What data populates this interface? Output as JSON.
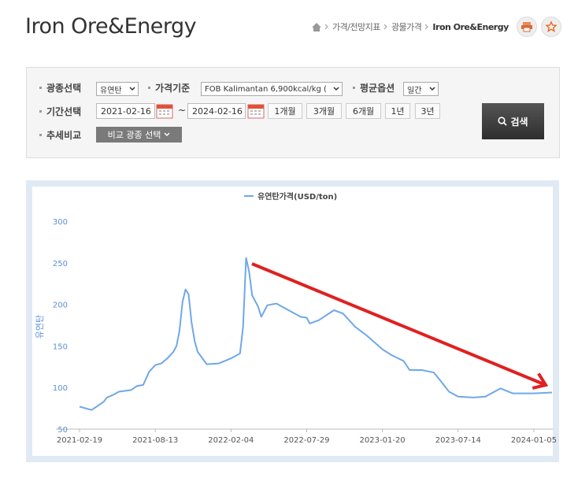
{
  "header": {
    "title": "Iron Ore&Energy",
    "breadcrumb": [
      "가격/전망지표",
      "광물가격",
      "Iron Ore&Energy"
    ]
  },
  "filters": {
    "mineral_label": "광종선택",
    "mineral": "유연탄",
    "price_label": "가격기준",
    "price": "FOB Kalimantan 6,900kcal/kg (",
    "avg_label": "평균옵션",
    "avg": "일간",
    "period_label": "기간선택",
    "start": "2021-02-16",
    "range_sep": "~",
    "end": "2024-02-16",
    "periods": [
      "1개월",
      "3개월",
      "6개월",
      "1년",
      "3년"
    ],
    "compare_label": "추세비교",
    "compare": "비교 광종 선택",
    "search": "검색"
  },
  "chart_data": {
    "type": "line",
    "ylabel": "유연탄",
    "legend": "top",
    "grid": false,
    "x": [
      "2021-02-19",
      "2021-03-19",
      "2021-04-16",
      "2021-04-23",
      "2021-05-07",
      "2021-05-21",
      "2021-06-18",
      "2021-07-02",
      "2021-07-16",
      "2021-07-30",
      "2021-08-13",
      "2021-08-27",
      "2021-09-10",
      "2021-09-24",
      "2021-10-01",
      "2021-10-08",
      "2021-10-15",
      "2021-10-22",
      "2021-10-29",
      "2021-11-05",
      "2021-11-12",
      "2021-11-19",
      "2021-12-10",
      "2022-01-07",
      "2022-02-04",
      "2022-02-25",
      "2022-03-04",
      "2022-03-11",
      "2022-03-18",
      "2022-03-25",
      "2022-04-08",
      "2022-04-15",
      "2022-04-29",
      "2022-05-20",
      "2022-06-17",
      "2022-07-15",
      "2022-07-29",
      "2022-08-05",
      "2022-08-26",
      "2022-09-30",
      "2022-10-21",
      "2022-11-18",
      "2022-12-16",
      "2023-01-20",
      "2023-02-10",
      "2023-03-10",
      "2023-03-24",
      "2023-04-21",
      "2023-05-19",
      "2023-06-02",
      "2023-06-23",
      "2023-07-14",
      "2023-08-18",
      "2023-09-15",
      "2023-10-20",
      "2023-11-17",
      "2024-01-05",
      "2024-02-16"
    ],
    "series": [
      {
        "name": "유연탄가격(USD/ton)",
        "color": "#6fa8e8",
        "values": [
          77,
          73,
          83,
          88,
          91,
          95,
          97,
          102,
          103,
          119,
          127,
          129,
          135,
          143,
          150,
          168,
          203,
          218,
          212,
          178,
          156,
          143,
          128,
          129,
          135,
          141,
          173,
          256,
          239,
          211,
          197,
          185,
          199,
          201,
          193,
          185,
          184,
          177,
          181,
          193,
          189,
          173,
          162,
          146,
          139,
          132,
          121,
          121,
          118,
          109,
          95,
          89,
          88,
          89,
          99,
          93,
          93,
          94
        ]
      }
    ],
    "xlim": [
      "2021-02-19",
      "2024-02-16"
    ],
    "xticks": [
      "2021-02-19",
      "2021-08-13",
      "2022-02-04",
      "2022-07-29",
      "2023-01-20",
      "2023-07-14",
      "2024-01-05"
    ],
    "ylim": [
      50,
      300
    ],
    "yticks": [
      50,
      100,
      150,
      200,
      250,
      300
    ]
  }
}
